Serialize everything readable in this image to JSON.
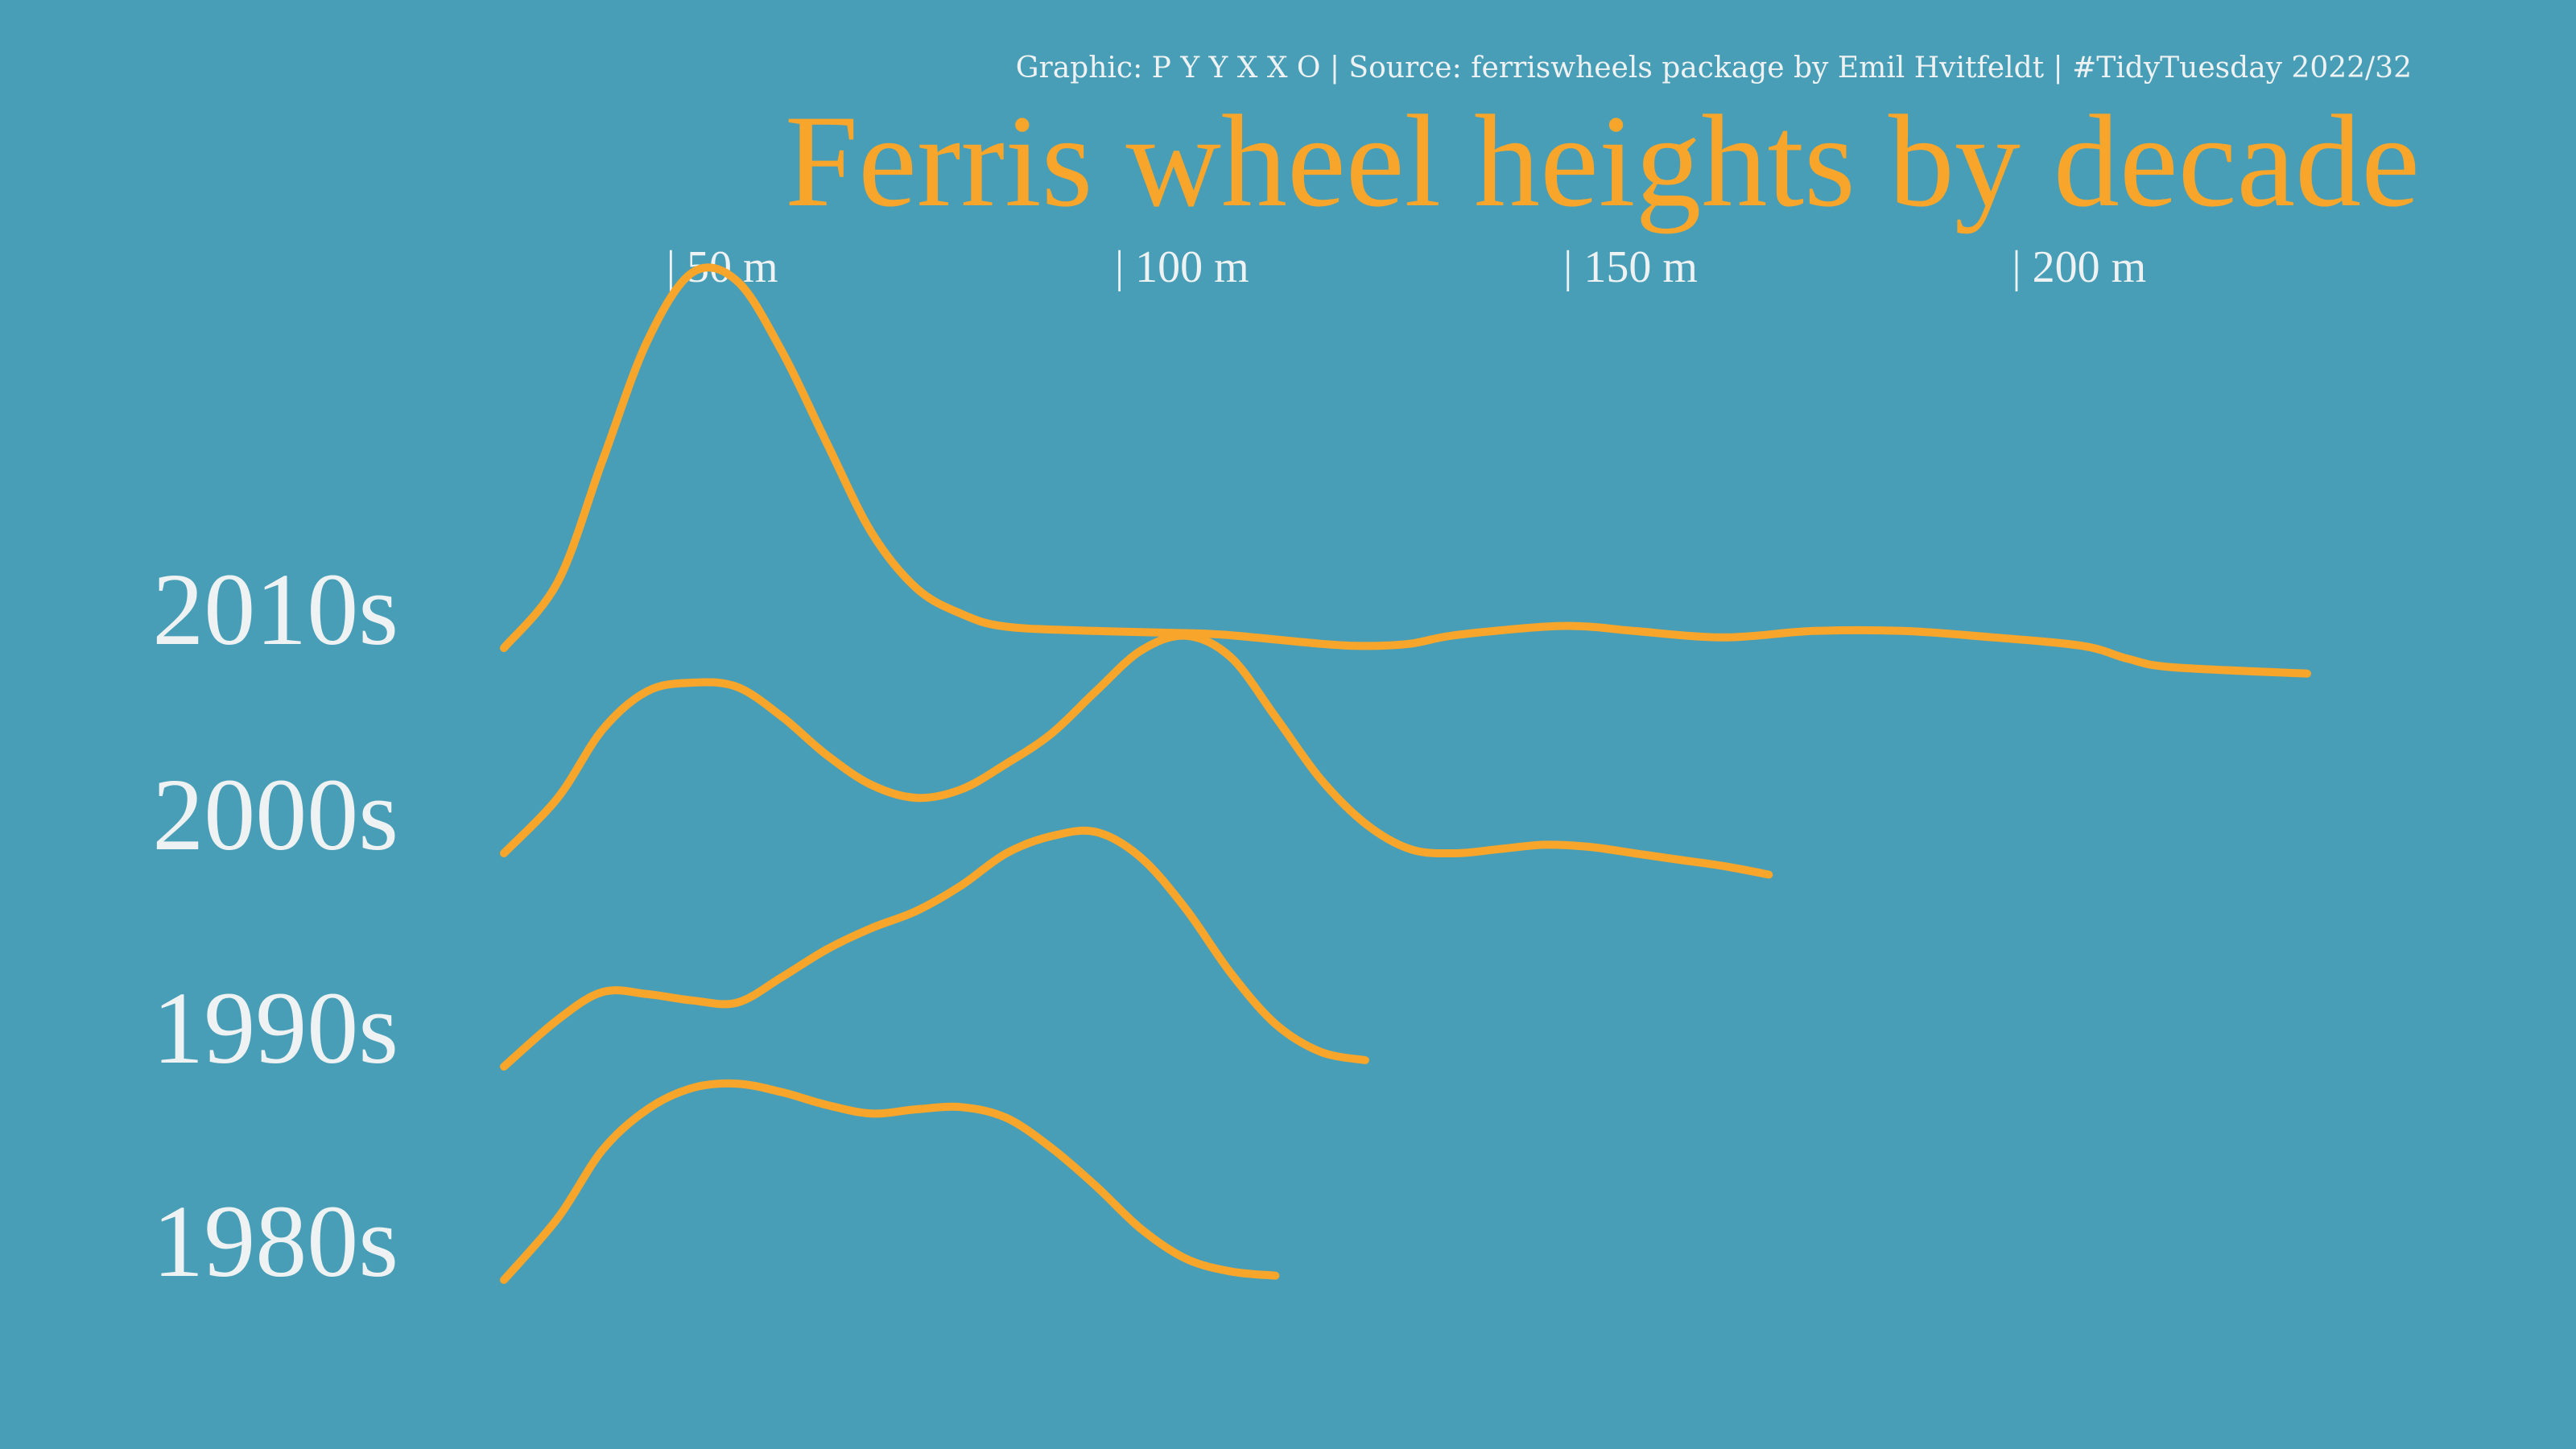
{
  "caption": "Graphic: P Y Y X X O | Source: ferriswheels package by Emil Hvitfeldt | #TidyTuesday 2022/32",
  "colors": {
    "background": "#479EB6",
    "accent": "#F7A52B",
    "text": "#EEF2F3"
  },
  "chart_data": {
    "type": "ridgeline",
    "title": "Ferris wheel heights by decade",
    "xlabel": "",
    "ylabel": "",
    "x_unit": "m",
    "xlim": [
      24,
      225
    ],
    "ticks": [
      {
        "value": 50,
        "label": "| 50 m"
      },
      {
        "value": 100,
        "label": "| 100 m"
      },
      {
        "value": 150,
        "label": "| 150 m"
      },
      {
        "value": 200,
        "label": "| 200 m"
      }
    ],
    "grid": false,
    "legend": "none",
    "density_scale_max": 1.0,
    "series": [
      {
        "name": "1980s",
        "points": [
          [
            24,
            0
          ],
          [
            30,
            0.29
          ],
          [
            35,
            0.61
          ],
          [
            40,
            0.8
          ],
          [
            45,
            0.9
          ],
          [
            50,
            0.92
          ],
          [
            55,
            0.88
          ],
          [
            60,
            0.82
          ],
          [
            65,
            0.78
          ],
          [
            70,
            0.8
          ],
          [
            75,
            0.81
          ],
          [
            80,
            0.76
          ],
          [
            85,
            0.62
          ],
          [
            90,
            0.44
          ],
          [
            95,
            0.24
          ],
          [
            100,
            0.1
          ],
          [
            105,
            0.04
          ],
          [
            110,
            0.02
          ]
        ]
      },
      {
        "name": "1990s",
        "points": [
          [
            24,
            0
          ],
          [
            30,
            0.22
          ],
          [
            35,
            0.35
          ],
          [
            40,
            0.34
          ],
          [
            45,
            0.31
          ],
          [
            50,
            0.3
          ],
          [
            55,
            0.42
          ],
          [
            60,
            0.55
          ],
          [
            65,
            0.65
          ],
          [
            70,
            0.73
          ],
          [
            75,
            0.85
          ],
          [
            80,
            1.0
          ],
          [
            85,
            1.08
          ],
          [
            90,
            1.1
          ],
          [
            95,
            0.98
          ],
          [
            100,
            0.74
          ],
          [
            105,
            0.44
          ],
          [
            110,
            0.2
          ],
          [
            115,
            0.07
          ],
          [
            120,
            0.03
          ]
        ]
      },
      {
        "name": "2000s",
        "points": [
          [
            24,
            0
          ],
          [
            30,
            0.26
          ],
          [
            35,
            0.58
          ],
          [
            40,
            0.76
          ],
          [
            45,
            0.8
          ],
          [
            50,
            0.78
          ],
          [
            55,
            0.64
          ],
          [
            60,
            0.46
          ],
          [
            65,
            0.32
          ],
          [
            70,
            0.26
          ],
          [
            75,
            0.3
          ],
          [
            80,
            0.42
          ],
          [
            85,
            0.56
          ],
          [
            90,
            0.76
          ],
          [
            95,
            0.95
          ],
          [
            100,
            1.02
          ],
          [
            105,
            0.92
          ],
          [
            110,
            0.64
          ],
          [
            115,
            0.35
          ],
          [
            120,
            0.14
          ],
          [
            125,
            0.02
          ],
          [
            130,
            0.0
          ],
          [
            135,
            0.02
          ],
          [
            140,
            0.04
          ],
          [
            145,
            0.03
          ],
          [
            150,
            0.0
          ],
          [
            155,
            -0.03
          ],
          [
            160,
            -0.06
          ],
          [
            165,
            -0.1
          ]
        ]
      },
      {
        "name": "2010s",
        "points": [
          [
            24,
            0
          ],
          [
            30,
            0.31
          ],
          [
            35,
            0.88
          ],
          [
            40,
            1.44
          ],
          [
            45,
            1.76
          ],
          [
            50,
            1.72
          ],
          [
            55,
            1.39
          ],
          [
            60,
            0.96
          ],
          [
            65,
            0.54
          ],
          [
            70,
            0.28
          ],
          [
            75,
            0.16
          ],
          [
            80,
            0.1
          ],
          [
            90,
            0.08
          ],
          [
            100,
            0.07
          ],
          [
            105,
            0.06
          ],
          [
            115,
            0.02
          ],
          [
            120,
            0.01
          ],
          [
            125,
            0.02
          ],
          [
            130,
            0.06
          ],
          [
            140,
            0.1
          ],
          [
            145,
            0.1
          ],
          [
            150,
            0.08
          ],
          [
            160,
            0.05
          ],
          [
            170,
            0.08
          ],
          [
            180,
            0.08
          ],
          [
            190,
            0.05
          ],
          [
            200,
            0.01
          ],
          [
            205,
            -0.05
          ],
          [
            210,
            -0.09
          ],
          [
            225,
            -0.12
          ]
        ]
      }
    ]
  }
}
